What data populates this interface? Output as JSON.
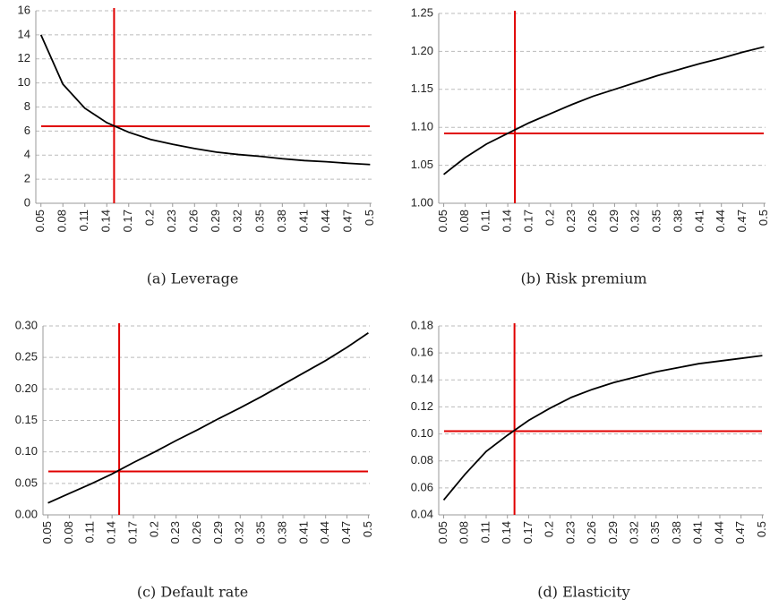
{
  "chart_data": [
    {
      "type": "line",
      "caption": "(a) Leverage",
      "x": [
        0.05,
        0.08,
        0.11,
        0.14,
        0.17,
        0.2,
        0.23,
        0.26,
        0.29,
        0.32,
        0.35,
        0.38,
        0.41,
        0.44,
        0.47,
        0.5
      ],
      "values": [
        14,
        9.9,
        7.9,
        6.7,
        5.9,
        5.3,
        4.9,
        4.55,
        4.25,
        4.05,
        3.9,
        3.7,
        3.55,
        3.45,
        3.32,
        3.22
      ],
      "color": "#000000",
      "xlim": [
        0.043,
        0.502
      ],
      "xticks": [
        0.05,
        0.08,
        0.11,
        0.14,
        0.17,
        0.2,
        0.23,
        0.26,
        0.29,
        0.32,
        0.35,
        0.38,
        0.41,
        0.44,
        0.47,
        0.5
      ],
      "ylim": [
        0,
        16
      ],
      "yticks": [
        0,
        2,
        4,
        6,
        8,
        10,
        12,
        14,
        16
      ],
      "grid": true,
      "reference_x": 0.15,
      "reference_y": 6.4,
      "reference_color": "#e00000"
    },
    {
      "type": "line",
      "caption": "(b) Risk premium",
      "x": [
        0.05,
        0.08,
        0.11,
        0.14,
        0.17,
        0.2,
        0.23,
        0.26,
        0.29,
        0.32,
        0.35,
        0.38,
        0.41,
        0.44,
        0.47,
        0.5
      ],
      "values": [
        1.038,
        1.06,
        1.078,
        1.092,
        1.106,
        1.118,
        1.13,
        1.141,
        1.15,
        1.159,
        1.168,
        1.176,
        1.184,
        1.191,
        1.199,
        1.206
      ],
      "color": "#000000",
      "xlim": [
        0.043,
        0.502
      ],
      "xticks": [
        0.05,
        0.08,
        0.11,
        0.14,
        0.17,
        0.2,
        0.23,
        0.26,
        0.29,
        0.32,
        0.35,
        0.38,
        0.41,
        0.44,
        0.47,
        0.5
      ],
      "ylim": [
        1,
        1.25
      ],
      "yticks": [
        {
          "value": 1,
          "label": "1.00"
        },
        1.05,
        {
          "value": 1.1,
          "label": "1.10"
        },
        1.15,
        {
          "value": 1.2,
          "label": "1.20"
        },
        1.25
      ],
      "grid": true,
      "reference_x": 0.15,
      "reference_y": 1.092,
      "reference_color": "#e00000"
    },
    {
      "type": "line",
      "caption": "(c) Default rate",
      "x": [
        0.05,
        0.08,
        0.11,
        0.14,
        0.17,
        0.2,
        0.23,
        0.26,
        0.29,
        0.32,
        0.35,
        0.38,
        0.41,
        0.44,
        0.47,
        0.5
      ],
      "values": [
        0.019,
        0.034,
        0.049,
        0.065,
        0.083,
        0.1,
        0.118,
        0.135,
        0.153,
        0.17,
        0.188,
        0.207,
        0.226,
        0.245,
        0.266,
        0.289
      ],
      "color": "#000000",
      "xlim": [
        0.043,
        0.502
      ],
      "xticks": [
        0.05,
        0.08,
        0.11,
        0.14,
        0.17,
        0.2,
        0.23,
        0.26,
        0.29,
        0.32,
        0.35,
        0.38,
        0.41,
        0.44,
        0.47,
        0.5
      ],
      "ylim": [
        0,
        0.3
      ],
      "yticks": [
        {
          "value": 0,
          "label": "0.00"
        },
        0.05,
        {
          "value": 0.1,
          "label": "0.10"
        },
        0.15,
        {
          "value": 0.2,
          "label": "0.20"
        },
        0.25,
        {
          "value": 0.3,
          "label": "0.30"
        }
      ],
      "grid": true,
      "reference_x": 0.15,
      "reference_y": 0.069,
      "reference_color": "#e00000"
    },
    {
      "type": "line",
      "caption": "(d) Elasticity",
      "x": [
        0.05,
        0.08,
        0.11,
        0.14,
        0.17,
        0.2,
        0.23,
        0.26,
        0.29,
        0.32,
        0.35,
        0.38,
        0.41,
        0.44,
        0.47,
        0.5
      ],
      "values": [
        0.051,
        0.07,
        0.087,
        0.099,
        0.11,
        0.119,
        0.127,
        0.133,
        0.138,
        0.142,
        0.146,
        0.149,
        0.152,
        0.154,
        0.156,
        0.158
      ],
      "color": "#000000",
      "xlim": [
        0.043,
        0.502
      ],
      "xticks": [
        0.05,
        0.08,
        0.11,
        0.14,
        0.17,
        0.2,
        0.23,
        0.26,
        0.29,
        0.32,
        0.35,
        0.38,
        0.41,
        0.44,
        0.47,
        0.5
      ],
      "ylim": [
        0.04,
        0.18
      ],
      "yticks": [
        0.04,
        0.06,
        0.08,
        {
          "value": 0.1,
          "label": "0.10"
        },
        0.12,
        0.14,
        0.16,
        0.18
      ],
      "grid": true,
      "reference_x": 0.15,
      "reference_y": 0.102,
      "reference_color": "#e00000"
    }
  ]
}
